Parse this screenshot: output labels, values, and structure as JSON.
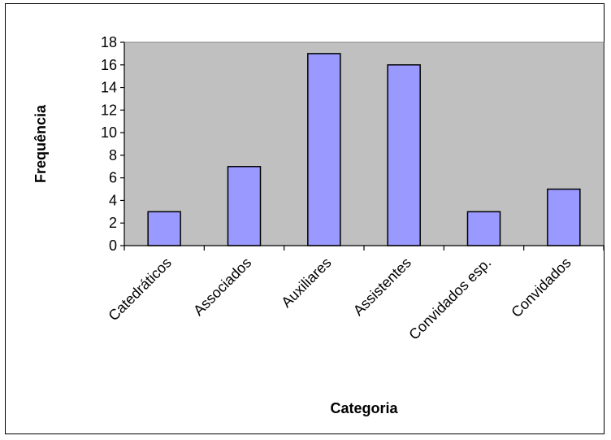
{
  "chart_data": {
    "type": "bar",
    "categories": [
      "Catedráticos",
      "Associados",
      "Auxiliares",
      "Assistentes",
      "Convidados esp.",
      "Convidados"
    ],
    "values": [
      3,
      7,
      17,
      16,
      3,
      5
    ],
    "xlabel": "Categoria",
    "ylabel": "Frequência",
    "ylim": [
      0,
      18
    ],
    "yticks": [
      0,
      2,
      4,
      6,
      8,
      10,
      12,
      14,
      16,
      18
    ],
    "grid": false,
    "legend": "none",
    "colors": {
      "bar_fill": "#9999ff",
      "bar_stroke": "#000000",
      "plot_background": "#c0c0c0"
    }
  }
}
